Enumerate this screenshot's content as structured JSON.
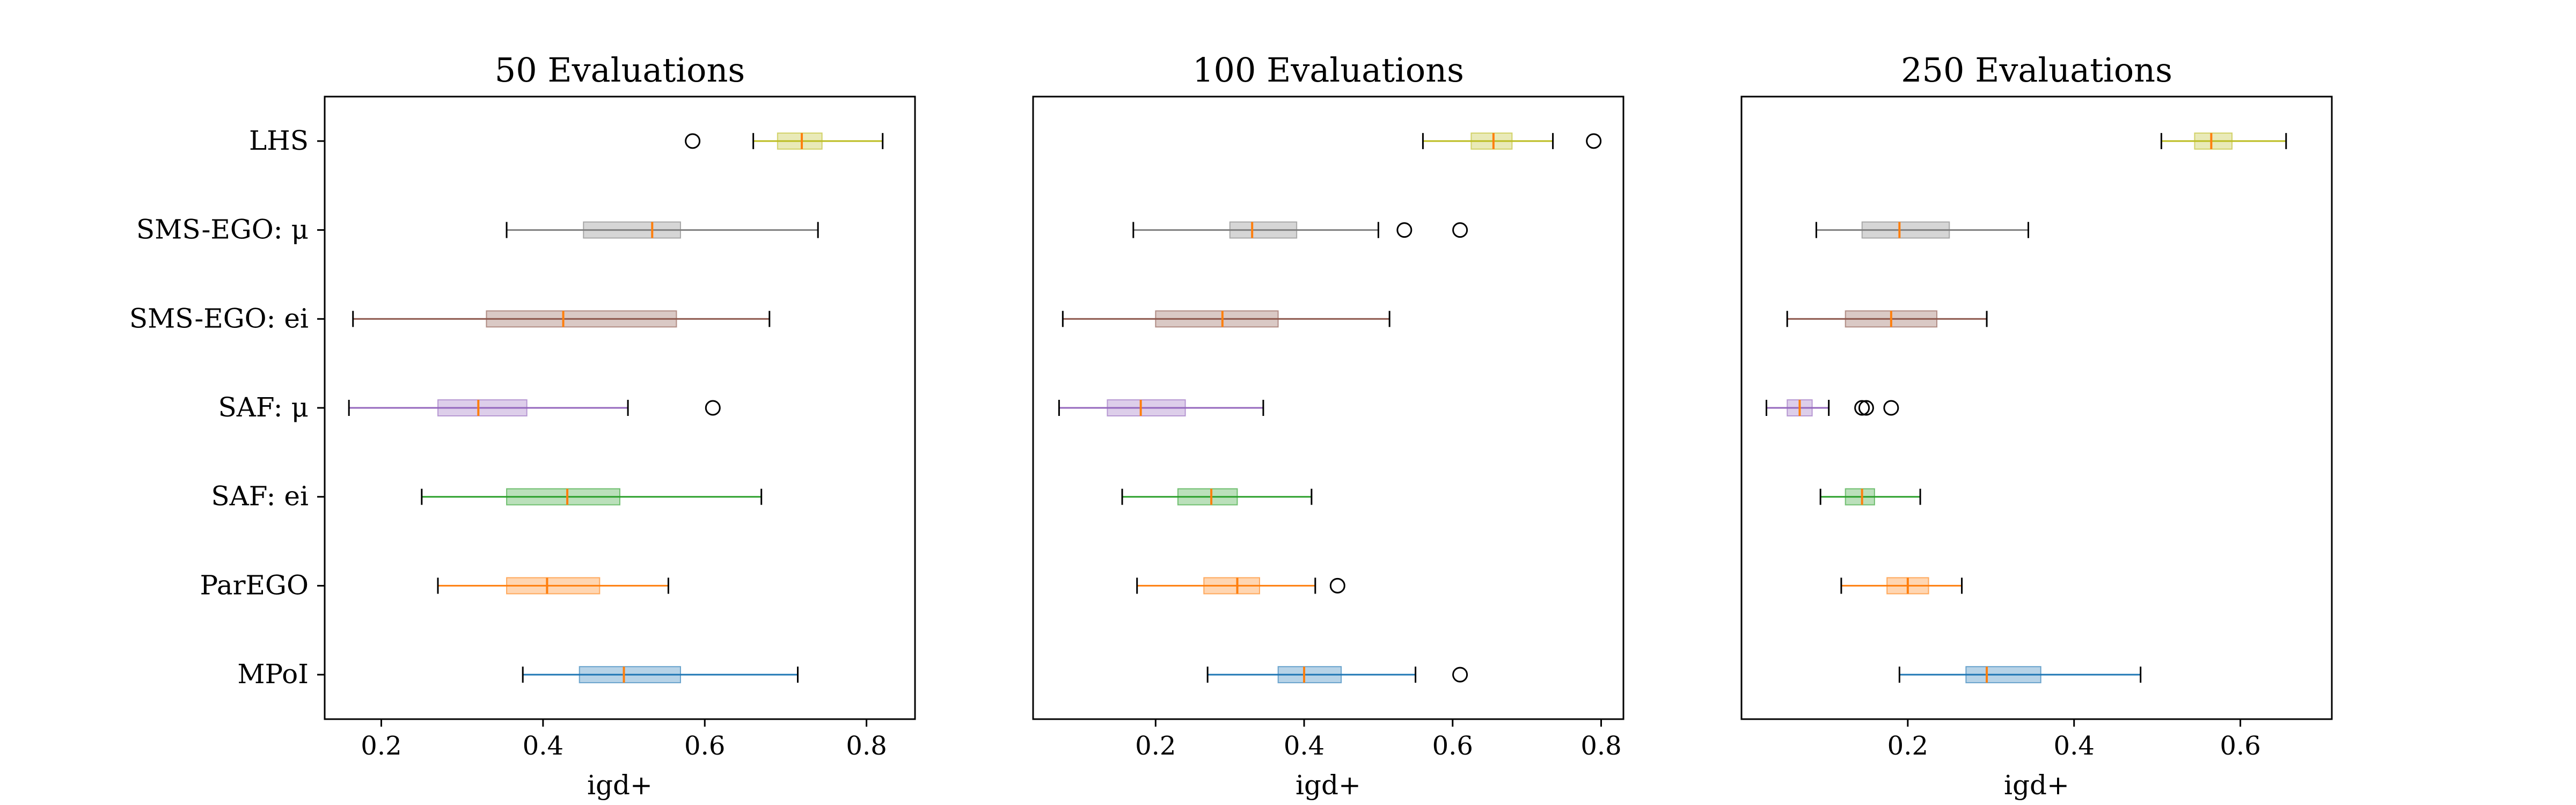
{
  "chart_data": {
    "type": "boxplot",
    "orientation": "horizontal",
    "categories": [
      "LHS",
      "SMS-EGO: μ",
      "SMS-EGO: ei",
      "SAF: μ",
      "SAF: ei",
      "ParEGO",
      "MPoI"
    ],
    "colors": [
      "#bcbd22",
      "#7f7f7f",
      "#8c564b",
      "#9467bd",
      "#2ca02c",
      "#ff7f0e",
      "#1f77b4"
    ],
    "median_color": "#ff7f0e",
    "panels": [
      {
        "title": "50 Evaluations",
        "xlabel": "igd+",
        "xlim": [
          0.13,
          0.86
        ],
        "xticks": [
          0.2,
          0.4,
          0.6,
          0.8
        ],
        "xtick_labels": [
          "0.2",
          "0.4",
          "0.6",
          "0.8"
        ],
        "boxes": [
          {
            "whislo": 0.66,
            "q1": 0.69,
            "med": 0.72,
            "q3": 0.745,
            "whishi": 0.82,
            "fliers": [
              0.585
            ]
          },
          {
            "whislo": 0.355,
            "q1": 0.45,
            "med": 0.535,
            "q3": 0.57,
            "whishi": 0.74,
            "fliers": []
          },
          {
            "whislo": 0.165,
            "q1": 0.33,
            "med": 0.425,
            "q3": 0.565,
            "whishi": 0.68,
            "fliers": []
          },
          {
            "whislo": 0.16,
            "q1": 0.27,
            "med": 0.32,
            "q3": 0.38,
            "whishi": 0.505,
            "fliers": [
              0.61
            ]
          },
          {
            "whislo": 0.25,
            "q1": 0.355,
            "med": 0.43,
            "q3": 0.495,
            "whishi": 0.67,
            "fliers": []
          },
          {
            "whislo": 0.27,
            "q1": 0.355,
            "med": 0.405,
            "q3": 0.47,
            "whishi": 0.555,
            "fliers": []
          },
          {
            "whislo": 0.375,
            "q1": 0.445,
            "med": 0.5,
            "q3": 0.57,
            "whishi": 0.715,
            "fliers": []
          }
        ]
      },
      {
        "title": "100 Evaluations",
        "xlabel": "igd+",
        "xlim": [
          0.035,
          0.83
        ],
        "xticks": [
          0.2,
          0.4,
          0.6,
          0.8
        ],
        "xtick_labels": [
          "0.2",
          "0.4",
          "0.6",
          "0.8"
        ],
        "boxes": [
          {
            "whislo": 0.56,
            "q1": 0.625,
            "med": 0.655,
            "q3": 0.68,
            "whishi": 0.735,
            "fliers": [
              0.79
            ]
          },
          {
            "whislo": 0.17,
            "q1": 0.3,
            "med": 0.33,
            "q3": 0.39,
            "whishi": 0.5,
            "fliers": [
              0.535,
              0.61
            ]
          },
          {
            "whislo": 0.075,
            "q1": 0.2,
            "med": 0.29,
            "q3": 0.365,
            "whishi": 0.515,
            "fliers": []
          },
          {
            "whislo": 0.07,
            "q1": 0.135,
            "med": 0.18,
            "q3": 0.24,
            "whishi": 0.345,
            "fliers": []
          },
          {
            "whislo": 0.155,
            "q1": 0.23,
            "med": 0.275,
            "q3": 0.31,
            "whishi": 0.41,
            "fliers": []
          },
          {
            "whislo": 0.175,
            "q1": 0.265,
            "med": 0.31,
            "q3": 0.34,
            "whishi": 0.415,
            "fliers": [
              0.445
            ]
          },
          {
            "whislo": 0.27,
            "q1": 0.365,
            "med": 0.4,
            "q3": 0.45,
            "whishi": 0.55,
            "fliers": [
              0.61
            ]
          }
        ]
      },
      {
        "title": "250 Evaluations",
        "xlabel": "igd+",
        "xlim": [
          0.0,
          0.71
        ],
        "xticks": [
          0.2,
          0.4,
          0.6
        ],
        "xtick_labels": [
          "0.2",
          "0.4",
          "0.6"
        ],
        "boxes": [
          {
            "whislo": 0.505,
            "q1": 0.545,
            "med": 0.565,
            "q3": 0.59,
            "whishi": 0.655,
            "fliers": []
          },
          {
            "whislo": 0.09,
            "q1": 0.145,
            "med": 0.19,
            "q3": 0.25,
            "whishi": 0.345,
            "fliers": []
          },
          {
            "whislo": 0.055,
            "q1": 0.125,
            "med": 0.18,
            "q3": 0.235,
            "whishi": 0.295,
            "fliers": []
          },
          {
            "whislo": 0.03,
            "q1": 0.055,
            "med": 0.07,
            "q3": 0.085,
            "whishi": 0.105,
            "fliers": [
              0.145,
              0.15,
              0.18
            ]
          },
          {
            "whislo": 0.095,
            "q1": 0.125,
            "med": 0.145,
            "q3": 0.16,
            "whishi": 0.215,
            "fliers": []
          },
          {
            "whislo": 0.12,
            "q1": 0.175,
            "med": 0.2,
            "q3": 0.225,
            "whishi": 0.265,
            "fliers": []
          },
          {
            "whislo": 0.19,
            "q1": 0.27,
            "med": 0.295,
            "q3": 0.36,
            "whishi": 0.48,
            "fliers": []
          }
        ]
      }
    ]
  }
}
